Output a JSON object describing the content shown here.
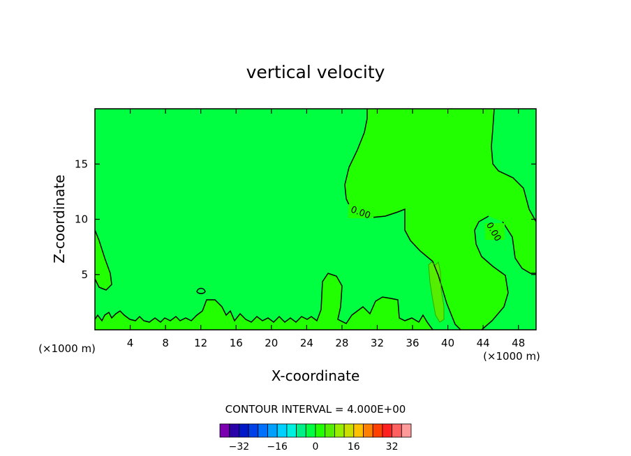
{
  "chart_data": {
    "type": "heatmap",
    "title": "vertical velocity",
    "xlabel": "X-coordinate",
    "ylabel": "Z-coordinate",
    "x_unit_left": "(×1000 m)",
    "x_unit_right": "(×1000 m)",
    "xlim": [
      0,
      50
    ],
    "ylim": [
      0,
      20
    ],
    "x_ticks": [
      "4",
      "8",
      "12",
      "16",
      "20",
      "24",
      "28",
      "32",
      "36",
      "40",
      "44",
      "48"
    ],
    "y_ticks": [
      "5",
      "10",
      "15"
    ],
    "x_tick_values": [
      4,
      8,
      12,
      16,
      20,
      24,
      28,
      32,
      36,
      40,
      44,
      48
    ],
    "y_tick_values": [
      5,
      10,
      15
    ],
    "contour_labels": [
      "0.00",
      "0.00"
    ],
    "contour_interval_text": "CONTOUR INTERVAL = 4.000E+00",
    "colorbar": {
      "levels": [
        -36,
        -32,
        -28,
        -24,
        -20,
        -16,
        -12,
        -8,
        -4,
        0,
        4,
        8,
        12,
        16,
        20,
        24,
        28,
        32,
        36
      ],
      "tick_labels": [
        "−32",
        "−16",
        "0",
        "16",
        "32"
      ],
      "tick_values": [
        -32,
        -16,
        0,
        16,
        32
      ],
      "colors": [
        "#7a00b0",
        "#2a00a8",
        "#0018c8",
        "#0040e8",
        "#0070ff",
        "#00a0ff",
        "#00d0ff",
        "#00f0e0",
        "#00f088",
        "#00ff40",
        "#22ff00",
        "#55ee00",
        "#99ee00",
        "#ccdd00",
        "#ffc000",
        "#ff8000",
        "#ff4000",
        "#ff2020",
        "#ff6060",
        "#ff9a9a"
      ]
    },
    "fill_colors": {
      "below_zero": "#00ff40",
      "above_zero": "#22ff00",
      "above_four": "#55ee00"
    },
    "grid": false
  }
}
